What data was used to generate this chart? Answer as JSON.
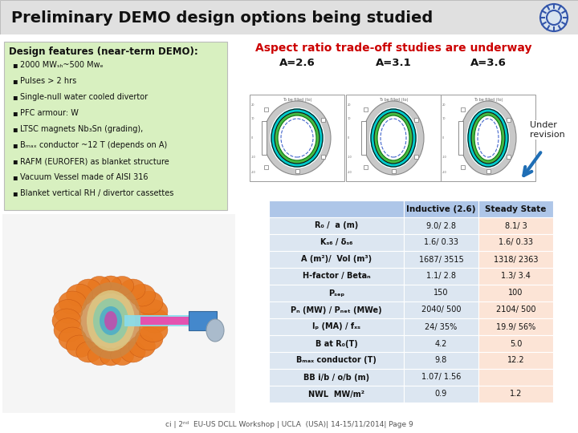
{
  "title": "Preliminary DEMO design options being studied",
  "subtitle": "Aspect ratio trade-off studies are underway",
  "title_color": "#111111",
  "subtitle_color": "#cc0000",
  "aspect_labels": [
    "A=2.6",
    "A=3.1",
    "A=3.6"
  ],
  "under_revision": "Under\nrevision",
  "design_features_title": "Design features (near-term DEMO):",
  "design_features": [
    "2000 MWₛₕ~500 Mwₑ",
    "Pulses > 2 hrs",
    "Single-null water cooled divertor",
    "PFC armour: W",
    "LTSC magnets Nb₃Sn (grading),",
    "Bₘₐₓ conductor ~12 T (depends on A)",
    "RAFM (EUROFER) as blanket structure",
    "Vacuum Vessel made of AISI 316",
    "Blanket vertical RH / divertor cassettes"
  ],
  "design_bg": "#d8f0c0",
  "table_header_bg": "#aec6e8",
  "table_row_bg1": "#dce6f1",
  "table_row_bg2": "#fce4d6",
  "table_rows": [
    [
      "R₀ /  a (m)",
      "9.0/ 2.8",
      "8.1/ 3"
    ],
    [
      "Kₛ₆ / δₛ₆",
      "1.6/ 0.33",
      "1.6/ 0.33"
    ],
    [
      "A (m²)/  Vol (m³)",
      "1687/ 3515",
      "1318/ 2363"
    ],
    [
      "H-factor / Betaₙ",
      "1.1/ 2.8",
      "1.3/ 3.4"
    ],
    [
      "Pₛₑₚ",
      "150",
      "100"
    ],
    [
      "Pₙ (MW) / Pₙₑₜ (MWe)",
      "2040/ 500",
      "2104/ 500"
    ],
    [
      "Iₚ (MA) / fₓₛ",
      "24/ 35%",
      "19.9/ 56%"
    ],
    [
      "B at R₀(T)",
      "4.2",
      "5.0"
    ],
    [
      "Bₘₐₓ conductor (T)",
      "9.8",
      "12.2"
    ],
    [
      "BB i/b / o/b (m)",
      "1.07/ 1.56",
      ""
    ],
    [
      "NWL  MW/m²",
      "0.9",
      "1.2"
    ]
  ],
  "col_headers": [
    "",
    "Inductive (2.6)",
    "Steady State"
  ],
  "footer": "ci | 2ⁿᵈ  EU-US DCLL Workshop | UCLA  (USA)| 14-15/11/2014| Page 9",
  "arrow_color": "#1f6eb5",
  "title_bar_color": "#e0e0e0",
  "white": "#ffffff"
}
